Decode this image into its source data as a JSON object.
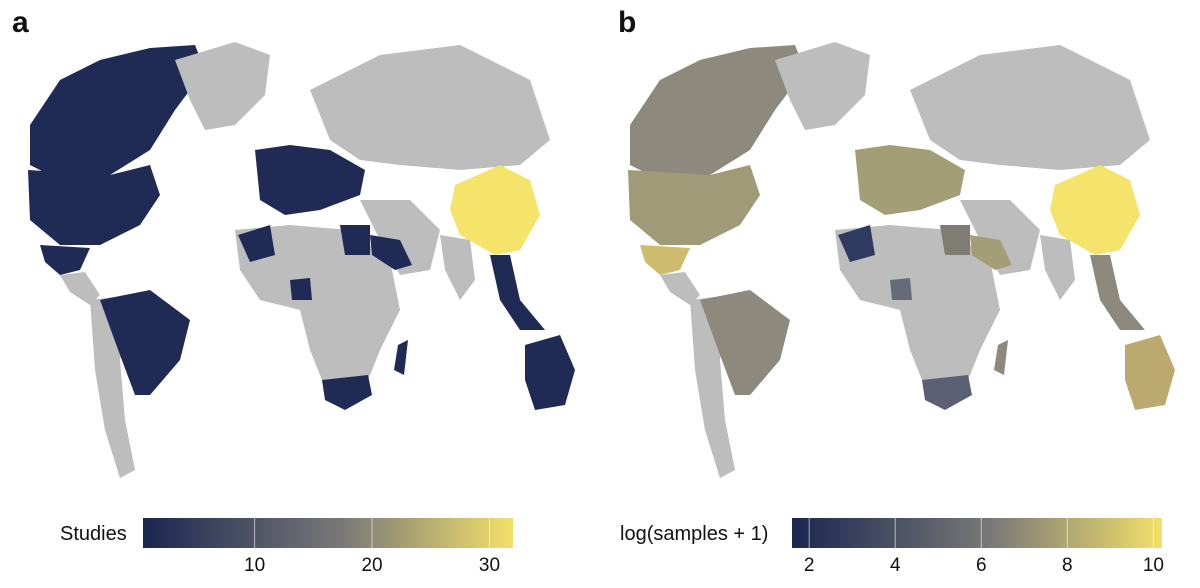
{
  "panels": [
    {
      "letter": "a",
      "legend": {
        "title": "Studies",
        "ticks": [
          {
            "value": 10,
            "label": "10"
          },
          {
            "value": 20,
            "label": "20"
          },
          {
            "value": 30,
            "label": "30"
          }
        ],
        "min": 0.5,
        "max": 32
      },
      "colors": {
        "low": "#1a2650",
        "mid": "#7c7b78",
        "high": "#f3e06a",
        "no_data": "#bdbdbd"
      }
    },
    {
      "letter": "b",
      "legend": {
        "title": "log(samples + 1)",
        "ticks": [
          {
            "value": 2,
            "label": "2"
          },
          {
            "value": 4,
            "label": "4"
          },
          {
            "value": 6,
            "label": "6"
          },
          {
            "value": 8,
            "label": "8"
          },
          {
            "value": 10,
            "label": "10"
          }
        ],
        "min": 1.6,
        "max": 10.2
      },
      "colors": {
        "low": "#1a2650",
        "mid": "#7c7b78",
        "high": "#f3e06a",
        "no_data": "#bdbdbd"
      }
    }
  ]
}
